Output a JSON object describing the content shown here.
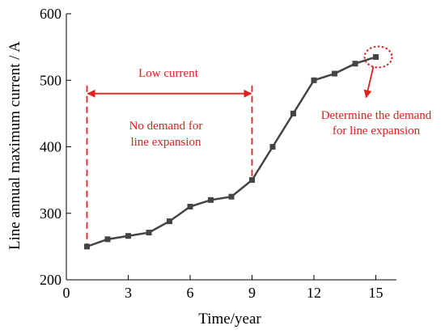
{
  "chart_data": {
    "type": "line",
    "xlabel": "Time/year",
    "ylabel": "Line annual maximum current / A",
    "xlim": [
      0,
      16
    ],
    "ylim": [
      200,
      600
    ],
    "xticks": [
      "0",
      "3",
      "6",
      "9",
      "12",
      "15"
    ],
    "yticks": [
      "200",
      "300",
      "400",
      "500",
      "600"
    ],
    "grid": false,
    "series": [
      {
        "x": [
          1,
          2,
          3,
          4,
          5,
          6,
          7,
          8,
          9,
          10,
          11,
          12,
          13,
          14,
          15
        ],
        "values": [
          250,
          261,
          266,
          271,
          288,
          310,
          320,
          325,
          350,
          400,
          450,
          500,
          510,
          525,
          535
        ],
        "color": "#444444",
        "marker": "square"
      }
    ],
    "annotations": {
      "low_current": "Low current",
      "no_demand_line1": "No demand for",
      "no_demand_line2": "line expansion",
      "determine_line1": "Determine the demand",
      "determine_line2": "for line expansion",
      "interval_x": [
        1,
        9
      ],
      "interval_y": 480,
      "highlight_point_x": 15,
      "color": "#e0201e"
    }
  }
}
